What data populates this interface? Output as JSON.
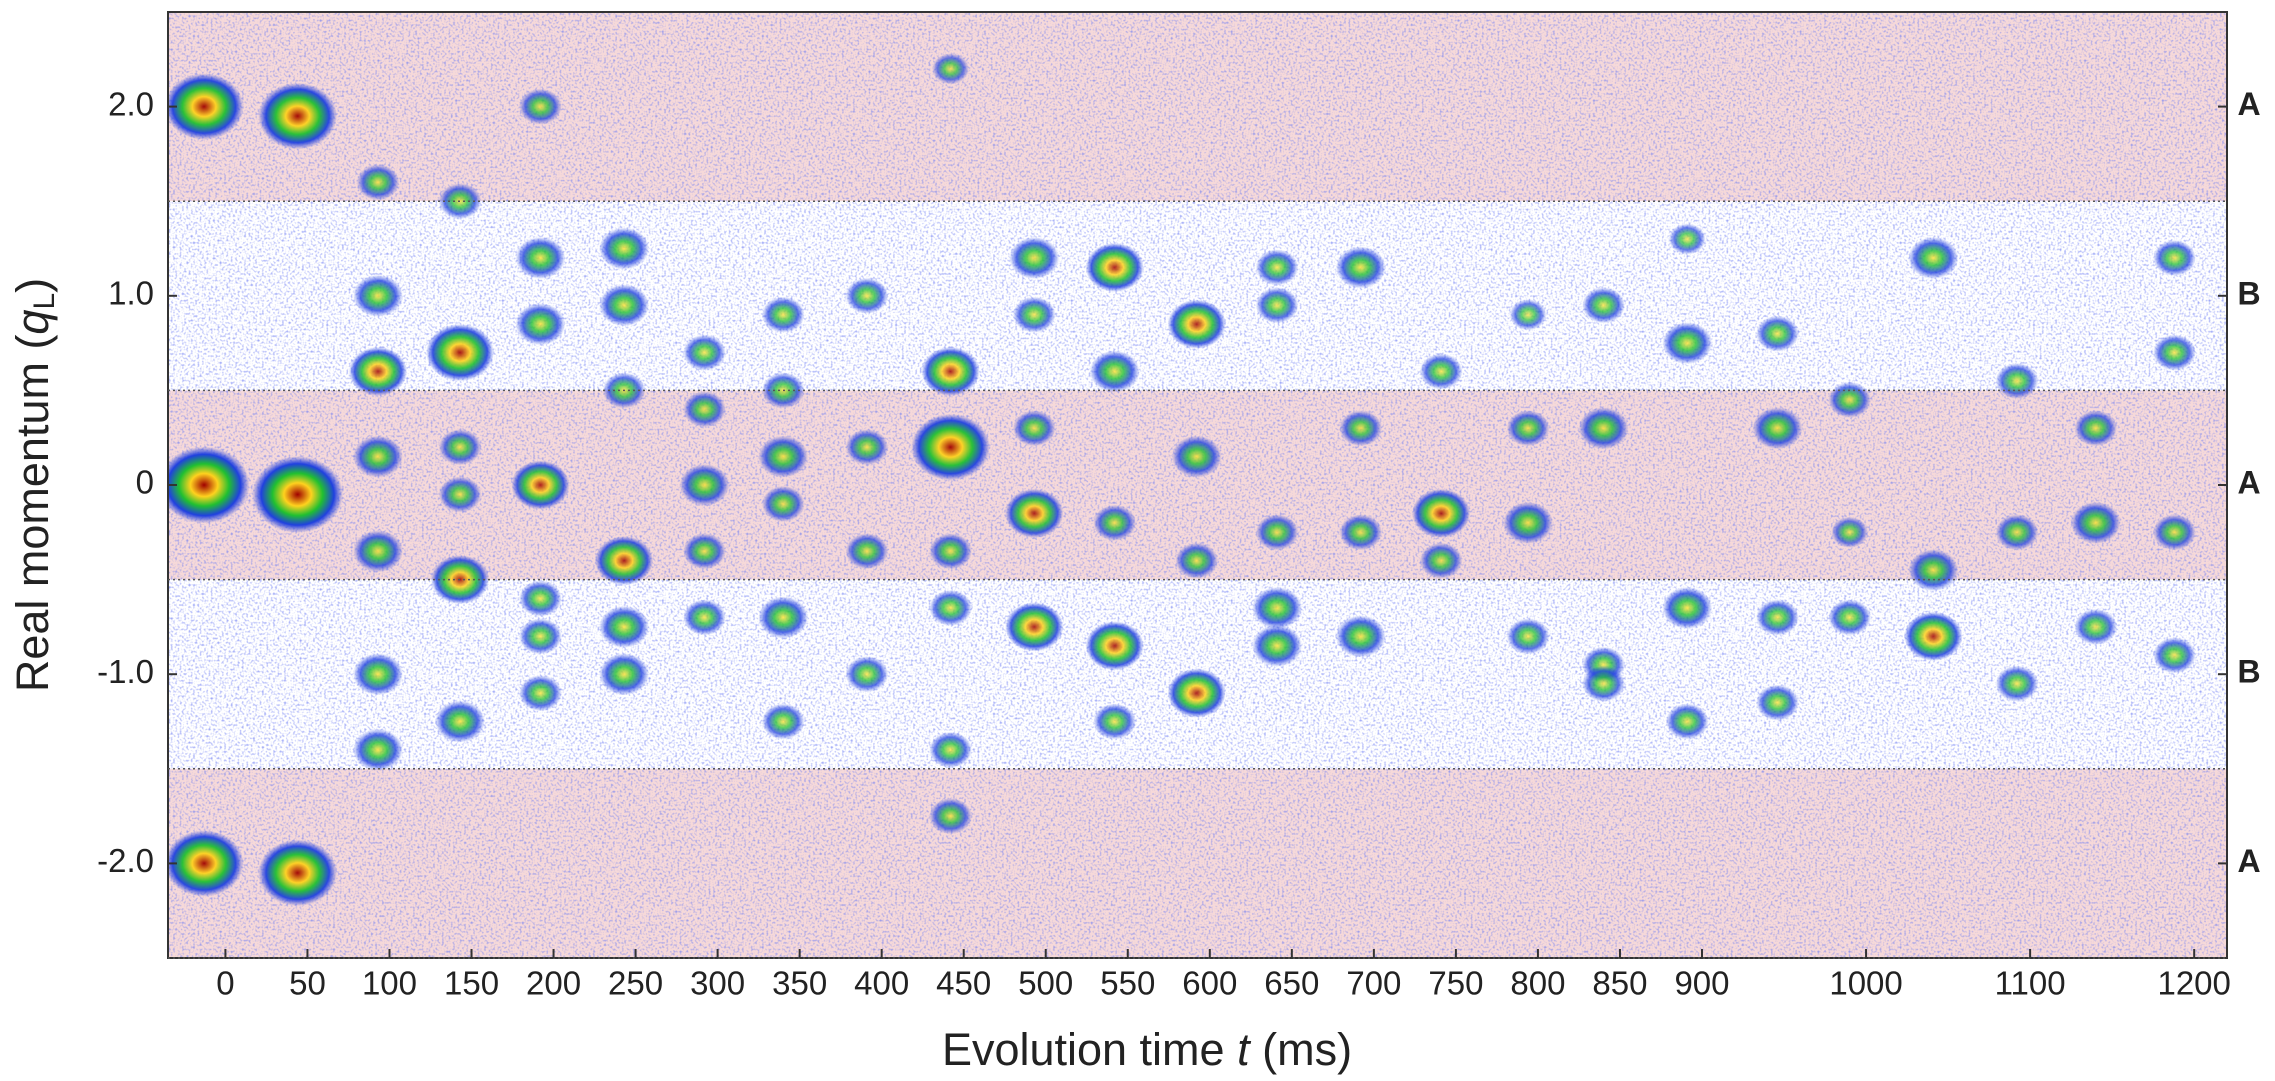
{
  "chart_data": {
    "type": "spot-image",
    "xlabel_parts": [
      "Evolution time ",
      "t",
      " (ms)"
    ],
    "ylabel_parts": [
      "Real momentum (",
      "q",
      "L",
      ")"
    ],
    "xlim": [
      -35,
      1220
    ],
    "ylim": [
      -2.5,
      2.5
    ],
    "xticks": [
      0,
      50,
      100,
      150,
      200,
      250,
      300,
      350,
      400,
      450,
      500,
      550,
      600,
      650,
      700,
      750,
      800,
      850,
      900,
      1000,
      1100,
      1200
    ],
    "yticks": [
      {
        "value": 2,
        "label": "2.0"
      },
      {
        "value": 1,
        "label": "1.0"
      },
      0,
      {
        "value": -1,
        "label": "-1.0"
      },
      {
        "value": -2,
        "label": "-2.0"
      }
    ],
    "bands": [
      {
        "from": 1.5,
        "to": 2.5,
        "label": "A",
        "color": "#f6d9d9"
      },
      {
        "from": 0.5,
        "to": 1.5,
        "label": "B",
        "color": "#ffffff"
      },
      {
        "from": -0.5,
        "to": 0.5,
        "label": "A",
        "color": "#f6d9d9"
      },
      {
        "from": -1.5,
        "to": -0.5,
        "label": "B",
        "color": "#ffffff"
      },
      {
        "from": -2.5,
        "to": -1.5,
        "label": "A",
        "color": "#f6d9d9"
      }
    ],
    "spots": {
      "x": [
        -13,
        -13,
        -13,
        44,
        44,
        44,
        93,
        93,
        93,
        93,
        93,
        93,
        93,
        143,
        143,
        143,
        143,
        143,
        143,
        192,
        192,
        192,
        192,
        192,
        192,
        192,
        243,
        243,
        243,
        243,
        243,
        243,
        292,
        292,
        292,
        292,
        292,
        340,
        340,
        340,
        340,
        340,
        340,
        391,
        391,
        391,
        391,
        442,
        442,
        442,
        442,
        442,
        442,
        442,
        493,
        493,
        493,
        493,
        493,
        542,
        542,
        542,
        542,
        542,
        592,
        592,
        592,
        592,
        641,
        641,
        641,
        641,
        641,
        692,
        692,
        692,
        692,
        741,
        741,
        741,
        794,
        794,
        794,
        794,
        840,
        840,
        840,
        840,
        891,
        891,
        891,
        891,
        946,
        946,
        946,
        946,
        990,
        990,
        990,
        1041,
        1041,
        1041,
        1092,
        1092,
        1092,
        1140,
        1140,
        1140,
        1188,
        1188,
        1188,
        1188
      ],
      "y": [
        2.0,
        0.0,
        -2.0,
        1.95,
        -0.05,
        -2.05,
        1.6,
        1.0,
        0.6,
        0.15,
        -0.35,
        -1.0,
        -1.4,
        1.5,
        0.7,
        0.2,
        -0.05,
        -0.5,
        -1.25,
        2.0,
        1.2,
        0.85,
        0.0,
        -0.6,
        -0.8,
        -1.1,
        1.25,
        0.95,
        0.5,
        -0.4,
        -0.75,
        -1.0,
        0.7,
        0.4,
        0.0,
        -0.35,
        -0.7,
        0.9,
        0.5,
        0.15,
        -0.1,
        -0.7,
        -1.25,
        1.0,
        0.2,
        -0.35,
        -1.0,
        2.2,
        0.6,
        0.2,
        -0.35,
        -0.65,
        -1.4,
        -1.75,
        1.2,
        0.9,
        0.3,
        -0.15,
        -0.75,
        1.15,
        0.6,
        -0.2,
        -0.85,
        -1.25,
        0.85,
        0.15,
        -0.4,
        -1.1,
        1.15,
        0.95,
        -0.25,
        -0.65,
        -0.85,
        1.15,
        0.3,
        -0.25,
        -0.8,
        0.6,
        -0.15,
        -0.4,
        0.9,
        0.3,
        -0.2,
        -0.8,
        0.95,
        0.3,
        -0.95,
        -1.05,
        1.3,
        0.75,
        -0.65,
        -1.25,
        0.8,
        0.3,
        -0.7,
        -1.15,
        0.45,
        -0.25,
        -0.7,
        1.2,
        -0.45,
        -0.8,
        0.55,
        -0.25,
        -1.05,
        0.3,
        -0.2,
        -0.75,
        1.2,
        0.7,
        -0.25,
        -0.9
      ],
      "intensity": [
        0.9,
        1.0,
        0.9,
        0.9,
        1.0,
        0.9,
        0.5,
        0.6,
        0.7,
        0.6,
        0.6,
        0.6,
        0.6,
        0.5,
        0.8,
        0.5,
        0.5,
        0.7,
        0.6,
        0.5,
        0.6,
        0.6,
        0.7,
        0.5,
        0.5,
        0.5,
        0.6,
        0.6,
        0.5,
        0.7,
        0.6,
        0.6,
        0.5,
        0.5,
        0.6,
        0.5,
        0.5,
        0.5,
        0.5,
        0.6,
        0.5,
        0.6,
        0.5,
        0.5,
        0.5,
        0.5,
        0.5,
        0.4,
        0.7,
        0.9,
        0.5,
        0.5,
        0.5,
        0.5,
        0.6,
        0.5,
        0.5,
        0.7,
        0.7,
        0.7,
        0.6,
        0.5,
        0.7,
        0.5,
        0.7,
        0.6,
        0.5,
        0.7,
        0.5,
        0.5,
        0.5,
        0.6,
        0.6,
        0.6,
        0.5,
        0.5,
        0.6,
        0.5,
        0.7,
        0.5,
        0.4,
        0.5,
        0.6,
        0.5,
        0.5,
        0.6,
        0.5,
        0.5,
        0.4,
        0.6,
        0.6,
        0.5,
        0.5,
        0.6,
        0.5,
        0.5,
        0.5,
        0.4,
        0.5,
        0.6,
        0.6,
        0.7,
        0.5,
        0.5,
        0.5,
        0.5,
        0.6,
        0.5,
        0.5,
        0.5,
        0.5,
        0.5
      ]
    }
  }
}
